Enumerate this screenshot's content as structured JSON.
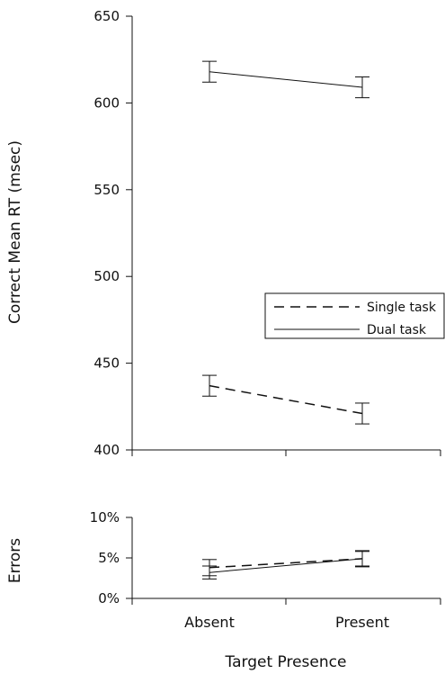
{
  "chart_data": [
    {
      "type": "line",
      "xlabel": "",
      "ylabel": "Correct Mean RT (msec)",
      "categories": [
        "Absent",
        "Present"
      ],
      "ylim": [
        400,
        650
      ],
      "yticks": [
        "400",
        "450",
        "500",
        "550",
        "600",
        "650"
      ],
      "legend_position": "right",
      "grid": false,
      "series": [
        {
          "name": "Single task",
          "style": "dashed",
          "values": [
            437,
            421
          ],
          "error": [
            6,
            6
          ]
        },
        {
          "name": "Dual task",
          "style": "solid",
          "values": [
            618,
            609
          ],
          "error": [
            6,
            6
          ]
        }
      ]
    },
    {
      "type": "line",
      "xlabel": "Target Presence",
      "ylabel": "Errors",
      "categories": [
        "Absent",
        "Present"
      ],
      "ylim": [
        0,
        10
      ],
      "yticks": [
        "0%",
        "5%",
        "10%"
      ],
      "grid": false,
      "series": [
        {
          "name": "Single task",
          "style": "dashed",
          "values": [
            3.8,
            4.9
          ],
          "error": [
            1.0,
            1.0
          ]
        },
        {
          "name": "Dual task",
          "style": "solid",
          "values": [
            3.2,
            4.9
          ],
          "error": [
            0.8,
            0.9
          ]
        }
      ]
    }
  ]
}
